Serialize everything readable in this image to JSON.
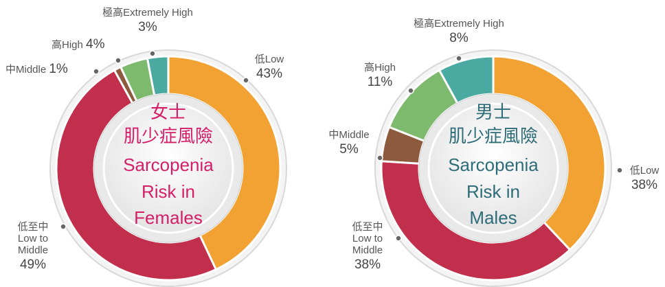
{
  "chart_data": [
    {
      "type": "pie",
      "title": [
        "女士",
        "肌少症風險",
        "Sarcopenia",
        "Risk in",
        "Females"
      ],
      "title_color": "#d41f68",
      "categories": [
        "低Low",
        "低至中\nLow to\nMiddle",
        "中Middle",
        "高High",
        "極高Extremely High"
      ],
      "values": [
        43,
        49,
        1,
        4,
        3
      ],
      "value_labels": [
        "43%",
        "49%",
        "1%",
        "4%",
        "3%"
      ],
      "colors": [
        "#f2a232",
        "#c22f4c",
        "#8e5a3e",
        "#7dba6e",
        "#4aaaa2"
      ]
    },
    {
      "type": "pie",
      "title": [
        "男士",
        "肌少症風險",
        "Sarcopenia",
        "Risk in",
        "Males"
      ],
      "title_color": "#2e6d78",
      "categories": [
        "低Low",
        "低至中\nLow to\nMiddle",
        "中Middle",
        "高High",
        "極高Extremely High"
      ],
      "values": [
        38,
        38,
        5,
        11,
        8
      ],
      "value_labels": [
        "38%",
        "38%",
        "5%",
        "11%",
        "8%"
      ],
      "colors": [
        "#f2a232",
        "#c22f4c",
        "#8e5a3e",
        "#7dba6e",
        "#4aaaa2"
      ]
    }
  ]
}
